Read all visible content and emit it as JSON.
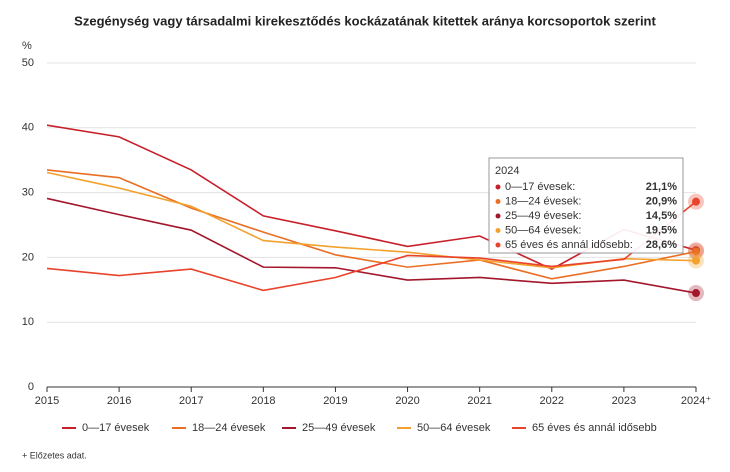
{
  "chart_data": {
    "type": "line",
    "title": "Szegénység vagy társadalmi kirekesztődés kockázatának kitettek aránya korcsoportok szerint",
    "y_unit": "%",
    "categories": [
      "2015",
      "2016",
      "2017",
      "2018",
      "2019",
      "2020",
      "2021",
      "2022",
      "2023",
      "2024⁺"
    ],
    "ylim": [
      0,
      50
    ],
    "yticks": [
      0,
      10,
      20,
      30,
      40,
      50
    ],
    "grid": true,
    "series": [
      {
        "name": "0—17 évesek",
        "color": "#c8202a",
        "values": [
          40.4,
          38.6,
          33.5,
          26.4,
          24.1,
          21.7,
          23.3,
          18.2,
          24.3,
          21.1
        ],
        "value_labels": [
          null,
          null,
          null,
          null,
          null,
          null,
          null,
          null,
          null,
          "21,1%"
        ]
      },
      {
        "name": "18—24 évesek",
        "color": "#ea6f25",
        "values": [
          33.5,
          32.3,
          27.6,
          23.9,
          20.4,
          18.5,
          19.6,
          16.7,
          18.6,
          20.9
        ],
        "value_labels": [
          null,
          null,
          null,
          null,
          null,
          null,
          null,
          null,
          null,
          "20,9%"
        ]
      },
      {
        "name": "25—49 évesek",
        "color": "#a3162c",
        "values": [
          29.1,
          26.6,
          24.2,
          18.5,
          18.4,
          16.5,
          16.9,
          16.0,
          16.5,
          14.5
        ],
        "value_labels": [
          null,
          null,
          null,
          null,
          null,
          null,
          null,
          null,
          null,
          "14,5%"
        ]
      },
      {
        "name": "50—64 évesek",
        "color": "#f3a12c",
        "values": [
          33.1,
          30.7,
          27.9,
          22.6,
          21.6,
          20.8,
          19.6,
          18.4,
          19.8,
          19.5
        ],
        "value_labels": [
          null,
          null,
          null,
          null,
          null,
          null,
          null,
          null,
          null,
          "19,5%"
        ]
      },
      {
        "name": "65 éves és annál idősebb",
        "color": "#e8432b",
        "values": [
          18.3,
          17.2,
          18.2,
          14.9,
          16.9,
          20.3,
          19.9,
          18.6,
          19.7,
          28.6
        ],
        "value_labels": [
          null,
          null,
          null,
          null,
          null,
          null,
          null,
          null,
          null,
          "28,6%"
        ]
      }
    ],
    "tooltip": {
      "title": "2024",
      "labels": [
        "0—17 évesek:",
        "18—24 évesek:",
        "25—49 évesek:",
        "50—64 évesek:",
        "65 éves és annál idősebb:"
      ]
    },
    "footnote": "+ Előzetes adat."
  }
}
